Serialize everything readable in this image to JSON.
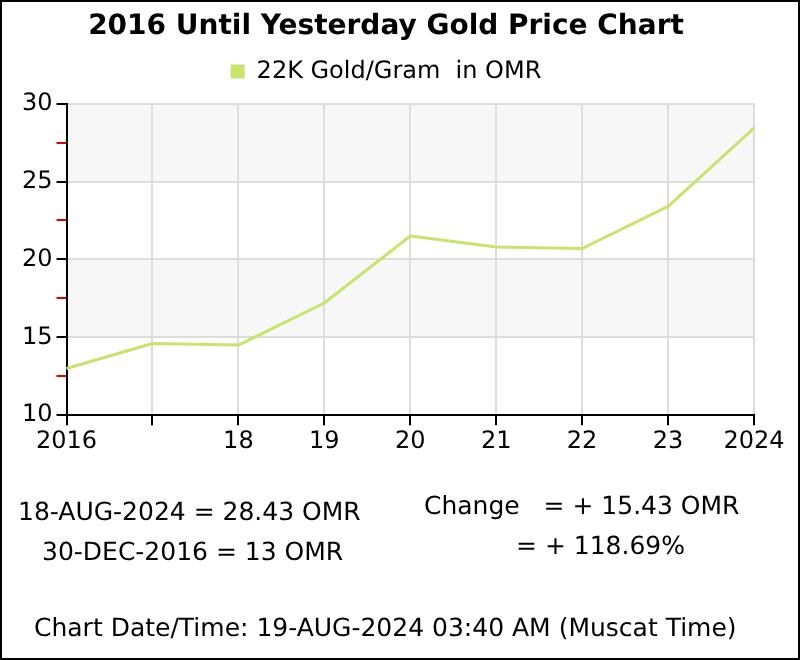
{
  "chart_data": {
    "type": "line",
    "title": "2016 Until Yesterday Gold Price Chart",
    "categories": [
      "2016",
      null,
      "18",
      "19",
      "20",
      "21",
      "22",
      "23",
      "2024"
    ],
    "series": [
      {
        "name": "22K Gold/Gram  in OMR",
        "color": "#c8e46a",
        "values": [
          13,
          14.6,
          14.5,
          17.2,
          21.5,
          20.8,
          20.7,
          23.4,
          28.43
        ]
      }
    ],
    "ylim": [
      10,
      30
    ],
    "yticks": [
      10,
      {
        "value": 12.5,
        "label": null
      },
      15,
      {
        "value": 17.5,
        "label": null
      },
      20,
      {
        "value": 22.5,
        "label": null
      },
      25,
      {
        "value": 27.5,
        "label": null
      },
      30
    ],
    "grid": true,
    "legend": "top",
    "marker": "none",
    "line_style": "solid",
    "annotations": [
      "18-AUG-2024 = 28.43 OMR",
      "30-DEC-2016 = 13 OMR",
      "Change   = + 15.43 OMR",
      "= + 118.69%",
      "Chart Date/Time: 19-AUG-2024 03:40 AM (Muscat Time)"
    ]
  }
}
